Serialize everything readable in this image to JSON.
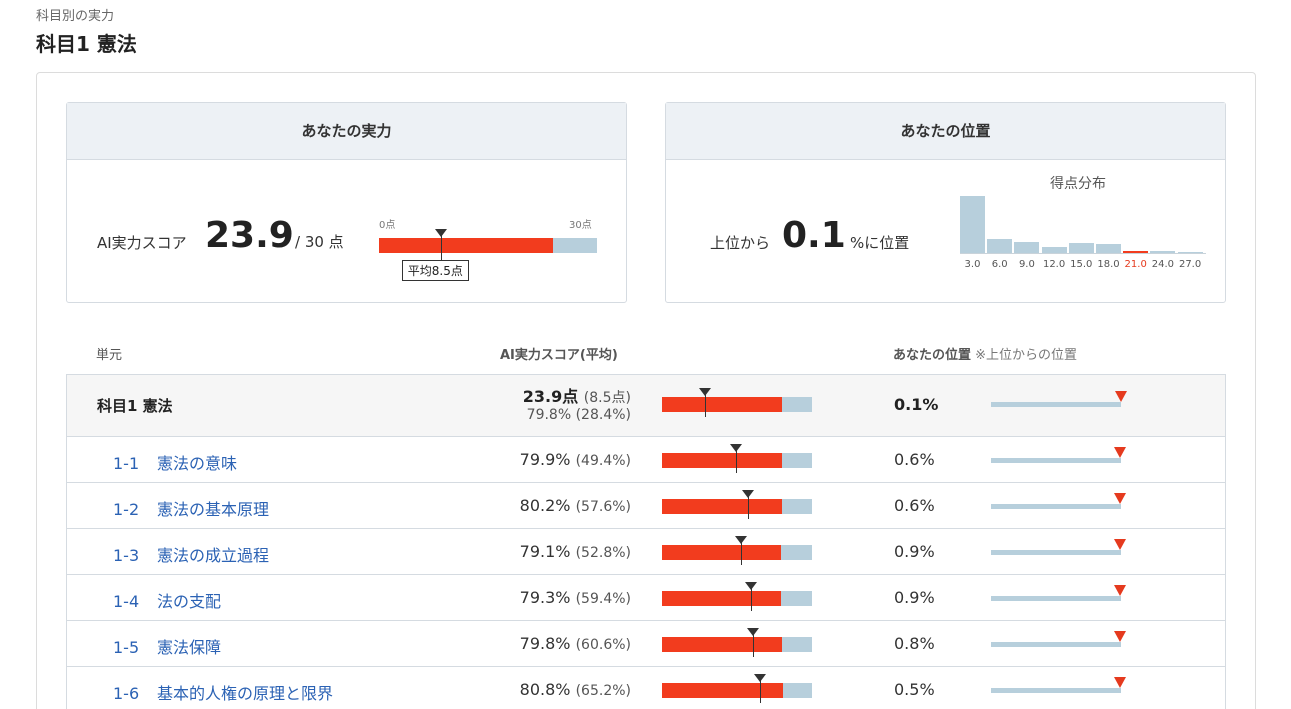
{
  "header": {
    "breadcrumb": "科目別の実力",
    "title": "科目1 憲法"
  },
  "ability_card": {
    "title": "あなたの実力",
    "score_label": "AI実力スコア",
    "score": 23.9,
    "score_text": "23.9",
    "max_text": "/ 30 点",
    "scale_min": "0点",
    "scale_max": "30点",
    "max_value": 30,
    "average": 8.5,
    "average_label": "平均8.5点"
  },
  "position_card": {
    "title": "あなたの位置",
    "prefix": "上位から",
    "value": "0.1",
    "suffix": "%に位置",
    "histogram_title": "得点分布"
  },
  "chart_data": {
    "type": "bar",
    "title": "得点分布",
    "categories": [
      "3.0",
      "6.0",
      "9.0",
      "12.0",
      "15.0",
      "18.0",
      "21.0",
      "24.0",
      "27.0"
    ],
    "values": [
      100,
      25,
      20,
      10,
      17,
      15,
      4,
      3,
      2
    ],
    "highlight_index": 6,
    "colors": {
      "bar": "#b7cfdc",
      "highlight": "#f23c1e"
    }
  },
  "table": {
    "col_unit": "単元",
    "col_score": "AI実力スコア(平均)",
    "col_position": "あなたの位置",
    "col_position_note": "※上位からの位置",
    "total_row": {
      "unit": "科目1 憲法",
      "score": "23.9点",
      "score_avg": "(8.5点)",
      "pct": "79.8%",
      "pct_avg": "(28.4%)",
      "value": 79.8,
      "avg": 28.4,
      "position": "0.1%",
      "position_value": 0.1
    },
    "rows": [
      {
        "num": "1-1",
        "name": "憲法の意味",
        "pct": "79.9%",
        "avg_text": "(49.4%)",
        "value": 79.9,
        "avg": 49.4,
        "position": "0.6%",
        "position_value": 0.6
      },
      {
        "num": "1-2",
        "name": "憲法の基本原理",
        "pct": "80.2%",
        "avg_text": "(57.6%)",
        "value": 80.2,
        "avg": 57.6,
        "position": "0.6%",
        "position_value": 0.6
      },
      {
        "num": "1-3",
        "name": "憲法の成立過程",
        "pct": "79.1%",
        "avg_text": "(52.8%)",
        "value": 79.1,
        "avg": 52.8,
        "position": "0.9%",
        "position_value": 0.9
      },
      {
        "num": "1-4",
        "name": "法の支配",
        "pct": "79.3%",
        "avg_text": "(59.4%)",
        "value": 79.3,
        "avg": 59.4,
        "position": "0.9%",
        "position_value": 0.9
      },
      {
        "num": "1-5",
        "name": "憲法保障",
        "pct": "79.8%",
        "avg_text": "(60.6%)",
        "value": 79.8,
        "avg": 60.6,
        "position": "0.8%",
        "position_value": 0.8
      },
      {
        "num": "1-6",
        "name": "基本的人権の原理と限界",
        "pct": "80.8%",
        "avg_text": "(65.2%)",
        "value": 80.8,
        "avg": 65.2,
        "position": "0.5%",
        "position_value": 0.5
      }
    ]
  },
  "colors": {
    "accent_red": "#f23c1e",
    "bar_blue": "#b7cfdc",
    "link_blue": "#2b62b4",
    "card_header": "#edf1f5"
  }
}
